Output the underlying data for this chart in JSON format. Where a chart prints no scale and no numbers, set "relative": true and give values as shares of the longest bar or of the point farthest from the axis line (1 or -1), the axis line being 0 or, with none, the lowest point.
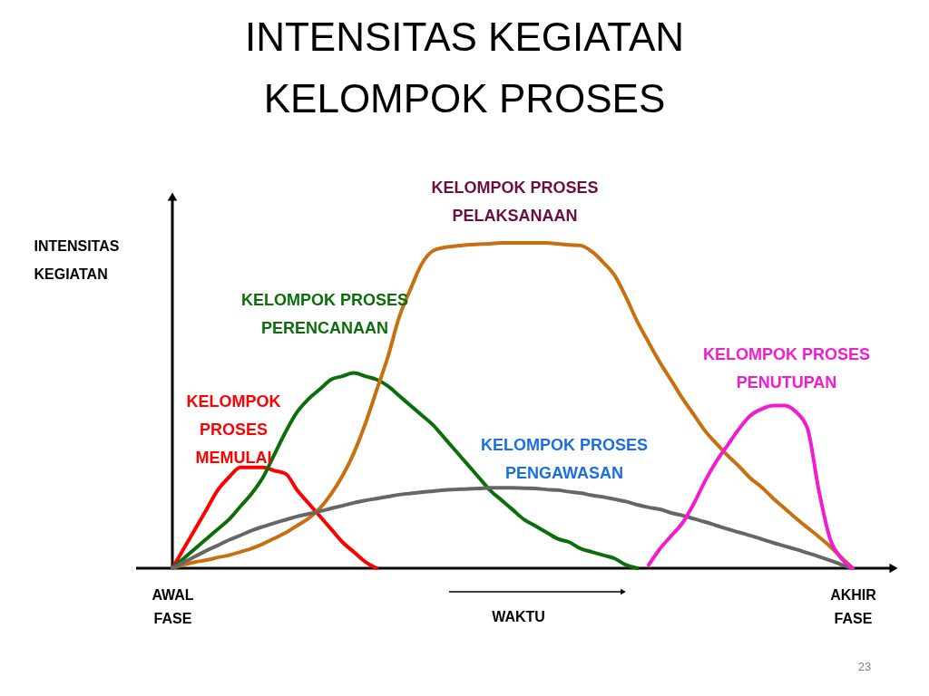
{
  "chart_data": {
    "type": "line",
    "title": "INTENSITAS KEGIATAN\nKELOMPOK PROSES",
    "xlabel": "WAKTU",
    "ylabel": "INTENSITAS\nKEGIATAN",
    "relative": true,
    "categories": [
      "AWAL\nFASE",
      null,
      null,
      null,
      null,
      null,
      null,
      null,
      null,
      null,
      null,
      null,
      null,
      null,
      null,
      null,
      null,
      null,
      null,
      null,
      null,
      null,
      null,
      null,
      null,
      null,
      null,
      null,
      null,
      null,
      null,
      null,
      null,
      null,
      null,
      null,
      null,
      null,
      null,
      null,
      null,
      null,
      null,
      null,
      null,
      null,
      null,
      null,
      null,
      null,
      null,
      null,
      null,
      null,
      null,
      null,
      null,
      null,
      null,
      null,
      "AKHIR\nFASE"
    ],
    "series": [
      {
        "name": "KELOMPOK\nPROSES\nMEMULAI",
        "color": "#ff0000",
        "values": [
          0,
          0.06,
          0.12,
          0.18,
          0.24,
          0.28,
          0.31,
          0.31,
          0.31,
          0.3,
          0.29,
          0.24,
          0.2,
          0.16,
          0.12,
          0.08,
          0.05,
          0.02,
          0,
          null,
          null,
          null,
          null,
          null,
          null,
          null,
          null,
          null,
          null,
          null,
          null,
          null,
          null,
          null,
          null,
          null,
          null,
          null,
          null,
          null,
          null,
          null,
          null,
          null,
          null,
          null,
          null,
          null,
          null,
          null,
          null,
          null,
          null,
          null,
          null,
          null,
          null,
          null,
          null,
          null,
          null
        ]
      },
      {
        "name": "KELOMPOK PROSES\nPERENCANAAN",
        "color": "#0b6e0b",
        "values": [
          0,
          0.03,
          0.06,
          0.09,
          0.12,
          0.15,
          0.19,
          0.23,
          0.28,
          0.35,
          0.42,
          0.48,
          0.52,
          0.55,
          0.58,
          0.59,
          0.6,
          0.59,
          0.58,
          0.56,
          0.53,
          0.5,
          0.47,
          0.44,
          0.4,
          0.36,
          0.32,
          0.28,
          0.24,
          0.21,
          0.18,
          0.15,
          0.13,
          0.11,
          0.09,
          0.08,
          0.06,
          0.05,
          0.04,
          0.03,
          0.01,
          0,
          null,
          null,
          null,
          null,
          null,
          null,
          null,
          null,
          null,
          null,
          null,
          null,
          null,
          null,
          null,
          null,
          null,
          null,
          null
        ]
      },
      {
        "name": "KELOMPOK PROSES\nPELAKSANAAN",
        "color": "#c86f10",
        "values": [
          0,
          0.011,
          0.019,
          0.025,
          0.033,
          0.04,
          0.05,
          0.061,
          0.075,
          0.092,
          0.109,
          0.131,
          0.153,
          0.184,
          0.228,
          0.284,
          0.354,
          0.443,
          0.546,
          0.649,
          0.772,
          0.858,
          0.936,
          0.976,
          0.986,
          0.99,
          0.994,
          0.996,
          0.997,
          1.0,
          1.0,
          1.0,
          1.0,
          1.0,
          0.997,
          0.994,
          0.992,
          0.973,
          0.94,
          0.9,
          0.833,
          0.758,
          0.694,
          0.632,
          0.577,
          0.521,
          0.471,
          0.421,
          0.382,
          0.345,
          0.312,
          0.276,
          0.248,
          0.214,
          0.184,
          0.153,
          0.125,
          0.097,
          0.067,
          0.033,
          0
        ]
      },
      {
        "name": "KELOMPOK PROSES\nPENGAWASAN",
        "color": "#666666",
        "values": [
          0,
          0.018,
          0.036,
          0.054,
          0.07,
          0.087,
          0.101,
          0.116,
          0.128,
          0.139,
          0.149,
          0.159,
          0.167,
          0.175,
          0.184,
          0.192,
          0.201,
          0.208,
          0.214,
          0.22,
          0.226,
          0.23,
          0.234,
          0.237,
          0.24,
          0.242,
          0.244,
          0.245,
          0.247,
          0.247,
          0.247,
          0.246,
          0.245,
          0.242,
          0.24,
          0.235,
          0.231,
          0.224,
          0.219,
          0.212,
          0.205,
          0.195,
          0.187,
          0.181,
          0.17,
          0.162,
          0.152,
          0.142,
          0.131,
          0.12,
          0.11,
          0.1,
          0.089,
          0.078,
          0.068,
          0.058,
          0.047,
          0.036,
          0.024,
          0.011,
          0
        ]
      },
      {
        "name": "KELOMPOK PROSES\nPENUTUPAN",
        "color": "#f21bd0",
        "values": [
          null,
          null,
          null,
          null,
          null,
          null,
          null,
          null,
          null,
          null,
          null,
          null,
          null,
          null,
          null,
          null,
          null,
          null,
          null,
          null,
          null,
          null,
          null,
          null,
          null,
          null,
          null,
          null,
          null,
          null,
          null,
          null,
          null,
          null,
          null,
          null,
          null,
          null,
          null,
          null,
          null,
          null,
          0.01,
          0.06,
          0.1,
          0.14,
          0.2,
          0.27,
          0.33,
          0.38,
          0.43,
          0.47,
          0.49,
          0.5,
          0.5,
          0.48,
          0.43,
          0.24,
          0.09,
          0.03,
          0
        ]
      }
    ],
    "annotations": [
      "23"
    ]
  }
}
